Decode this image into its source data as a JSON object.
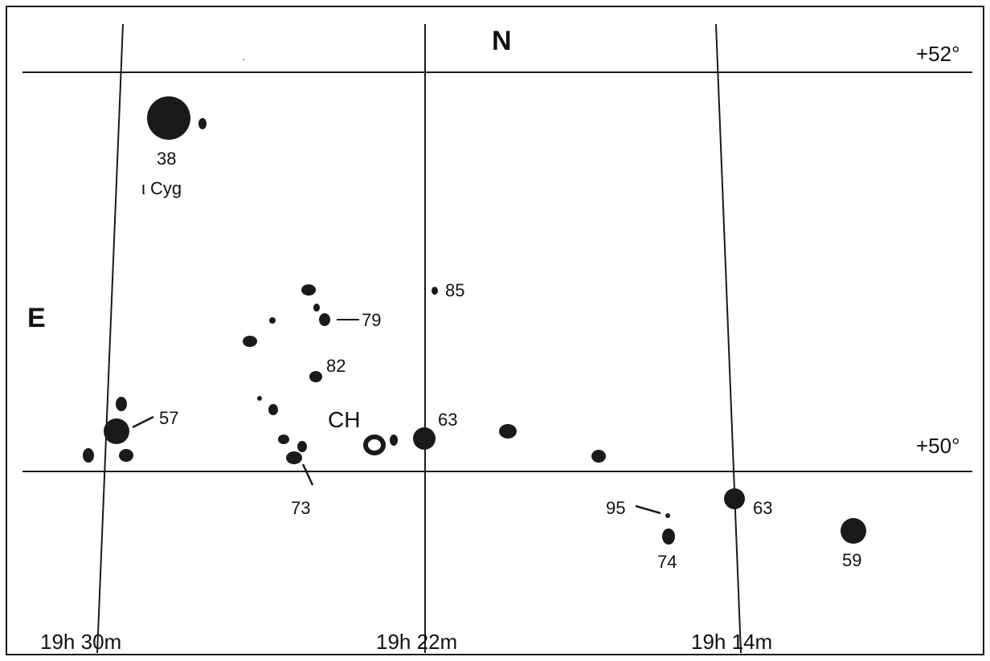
{
  "colors": {
    "ink": "#1a1a1a",
    "paper": "#ffffff"
  },
  "compass": {
    "north": "N",
    "east": "E"
  },
  "declination_labels": [
    "+52°",
    "+50°"
  ],
  "ra_labels": [
    "19h 30m",
    "19h 22m",
    "19h 14m"
  ],
  "stars": [
    {
      "id": "iota-cyg",
      "mag_label": "38",
      "name": "ι Cyg"
    },
    {
      "id": "star-57",
      "mag_label": "57"
    },
    {
      "id": "star-63-a",
      "mag_label": "63"
    },
    {
      "id": "star-63-b",
      "mag_label": "63"
    },
    {
      "id": "star-59",
      "mag_label": "59"
    },
    {
      "id": "star-73",
      "mag_label": "73"
    },
    {
      "id": "star-74",
      "mag_label": "74"
    },
    {
      "id": "star-79",
      "mag_label": "79"
    },
    {
      "id": "star-82",
      "mag_label": "82"
    },
    {
      "id": "star-85",
      "mag_label": "85"
    },
    {
      "id": "star-95",
      "mag_label": "95"
    }
  ],
  "target": {
    "label": "CH"
  }
}
